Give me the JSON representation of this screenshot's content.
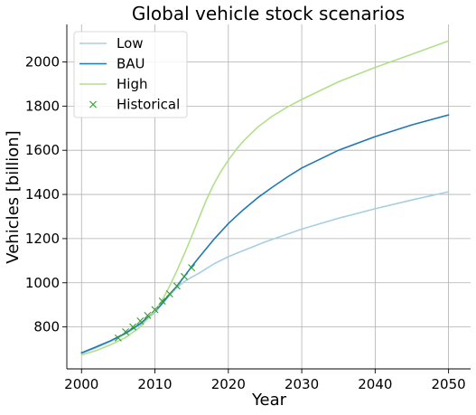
{
  "chart_data": {
    "type": "line",
    "title": "Global vehicle stock scenarios",
    "xlabel": "Year",
    "ylabel": "Vehicles [billion]",
    "xlim": [
      1998,
      2053
    ],
    "ylim": [
      610,
      2170
    ],
    "xticks": [
      2000,
      2010,
      2020,
      2030,
      2040,
      2050
    ],
    "yticks": [
      800,
      1000,
      1200,
      1400,
      1600,
      1800,
      2000
    ],
    "grid": true,
    "legend_position": "top-left",
    "series": [
      {
        "name": "Low",
        "color": "#a6cee3",
        "style": "line",
        "x": [
          2000,
          2002,
          2004,
          2006,
          2008,
          2010,
          2011,
          2012,
          2013,
          2014,
          2015,
          2016,
          2018,
          2020,
          2022,
          2025,
          2030,
          2035,
          2040,
          2045,
          2050
        ],
        "y": [
          680,
          706,
          735,
          768,
          810,
          865,
          903,
          943,
          978,
          1005,
          1025,
          1043,
          1085,
          1118,
          1145,
          1185,
          1243,
          1292,
          1335,
          1375,
          1412
        ]
      },
      {
        "name": "BAU",
        "color": "#1f78b4",
        "style": "line",
        "x": [
          2000,
          2002,
          2004,
          2006,
          2008,
          2010,
          2011,
          2012,
          2013,
          2014,
          2015,
          2016,
          2018,
          2020,
          2022,
          2024,
          2026,
          2028,
          2030,
          2035,
          2040,
          2045,
          2050
        ],
        "y": [
          683,
          710,
          738,
          772,
          815,
          870,
          908,
          948,
          985,
          1028,
          1073,
          1115,
          1195,
          1268,
          1330,
          1385,
          1433,
          1478,
          1520,
          1600,
          1662,
          1715,
          1760
        ]
      },
      {
        "name": "High",
        "color": "#b2df8a",
        "style": "line",
        "x": [
          2000,
          2002,
          2004,
          2006,
          2008,
          2010,
          2011,
          2012,
          2013,
          2014,
          2015,
          2016,
          2017,
          2018,
          2019,
          2020,
          2021,
          2022,
          2024,
          2026,
          2028,
          2030,
          2035,
          2040,
          2045,
          2050
        ],
        "y": [
          673,
          693,
          720,
          752,
          800,
          872,
          922,
          985,
          1055,
          1130,
          1210,
          1293,
          1375,
          1445,
          1505,
          1555,
          1600,
          1640,
          1705,
          1755,
          1795,
          1830,
          1910,
          1975,
          2035,
          2095
        ]
      },
      {
        "name": "Historical",
        "color": "#33a02c",
        "style": "marker",
        "marker": "x",
        "x": [
          2005,
          2006,
          2007,
          2008,
          2009,
          2010,
          2011,
          2012,
          2013,
          2014,
          2015
        ],
        "y": [
          750,
          778,
          800,
          827,
          852,
          878,
          917,
          950,
          985,
          1028,
          1068
        ]
      }
    ]
  }
}
